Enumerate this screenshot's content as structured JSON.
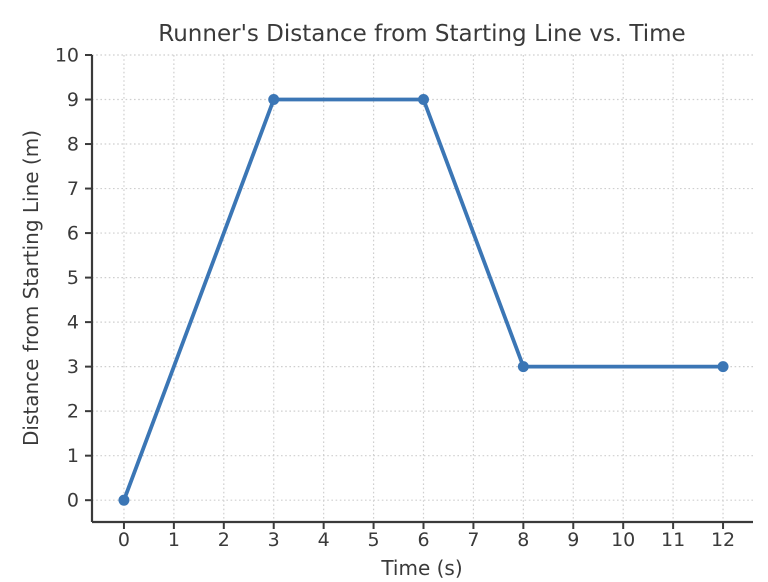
{
  "chart_data": {
    "type": "line",
    "title": "Runner's Distance from Starting Line vs. Time",
    "xlabel": "Time (s)",
    "ylabel": "Distance from Starting Line (m)",
    "x": [
      0,
      3,
      6,
      8,
      12
    ],
    "y": [
      0,
      9,
      9,
      3,
      3
    ],
    "x_ticks": [
      0,
      1,
      2,
      3,
      4,
      5,
      6,
      7,
      8,
      9,
      10,
      11,
      12
    ],
    "y_ticks": [
      0,
      1,
      2,
      3,
      4,
      5,
      6,
      7,
      8,
      9,
      10
    ],
    "xlim": [
      -0.64,
      12.6
    ],
    "ylim": [
      -0.49,
      10
    ],
    "grid": true,
    "grid_style": "dotted",
    "legend": false,
    "marker": "circle",
    "line_color": "#3b76b5",
    "marker_color": "#3b76b5",
    "grid_color": "#cfcfcf",
    "axis_color": "#3a3a3a",
    "text_color": "#3a3a3a",
    "background": "#ffffff"
  }
}
